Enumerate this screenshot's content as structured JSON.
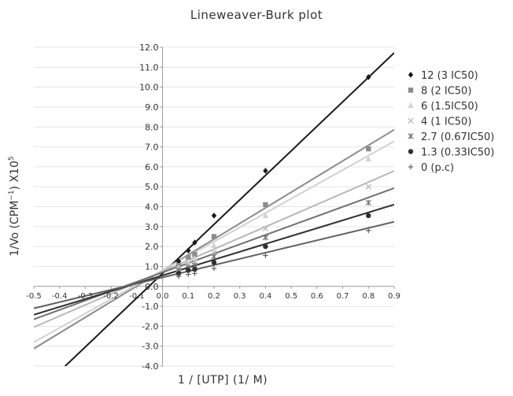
{
  "chart_data": {
    "type": "scatter",
    "title": "Lineweaver-Burk plot",
    "xlabel": "1 / [UTP] (1/ M)",
    "ylabel_parts": {
      "main": "1/Vo (CPM",
      "exp": "−1",
      "tail": ") X10",
      "power": "5"
    },
    "xlim": [
      -0.5,
      0.9
    ],
    "ylim": [
      -4.0,
      12.0
    ],
    "x_ticks": [
      "-0.5",
      "-0.4",
      "-0.3",
      "-0.2",
      "-0.1",
      "0.0",
      "0.1",
      "0.2",
      "0.3",
      "0.4",
      "0.5",
      "0.6",
      "0.7",
      "0.8",
      "0.9"
    ],
    "y_ticks": [
      "-4.0",
      "-3.0",
      "-2.0",
      "-1.0",
      "0.0",
      "1.0",
      "2.0",
      "3.0",
      "4.0",
      "5.0",
      "6.0",
      "7.0",
      "8.0",
      "9.0",
      "10.0",
      "11.0",
      "12.0"
    ],
    "grid": "horizontal",
    "legend_position": "right",
    "x": [
      0.0625,
      0.1,
      0.125,
      0.2,
      0.4,
      0.8
    ],
    "series": [
      {
        "name": "12 (3 IC50)",
        "marker": "diamond",
        "color": "#1a1a1a",
        "values": [
          1.25,
          1.8,
          2.2,
          3.55,
          5.8,
          10.5
        ],
        "fit": {
          "slope": 12.3,
          "intercept": 0.65
        }
      },
      {
        "name": "8 (2 IC50)",
        "marker": "square",
        "color": "#8c8c8c",
        "values": [
          1.05,
          1.45,
          1.6,
          2.5,
          4.1,
          6.9
        ],
        "fit": {
          "slope": 7.85,
          "intercept": 0.8
        }
      },
      {
        "name": "6 (1.5IC50)",
        "marker": "triangle",
        "color": "#d2d2d2",
        "values": [
          0.95,
          1.25,
          1.4,
          2.05,
          3.55,
          6.4
        ],
        "fit": {
          "slope": 7.2,
          "intercept": 0.8
        }
      },
      {
        "name": "4 (1 IC50)",
        "marker": "x",
        "color": "#b8b8b8",
        "values": [
          0.85,
          1.1,
          1.2,
          1.7,
          2.9,
          5.0
        ],
        "fit": {
          "slope": 5.6,
          "intercept": 0.75
        }
      },
      {
        "name": "2.7 (0.67IC50)",
        "marker": "asterisk",
        "color": "#707070",
        "values": [
          0.8,
          0.95,
          1.05,
          1.5,
          2.45,
          4.2
        ],
        "fit": {
          "slope": 4.7,
          "intercept": 0.7
        }
      },
      {
        "name": "1.3 (0.33IC50)",
        "marker": "circle",
        "color": "#303030",
        "values": [
          0.65,
          0.8,
          0.85,
          1.2,
          2.0,
          3.55
        ],
        "fit": {
          "slope": 3.95,
          "intercept": 0.55
        }
      },
      {
        "name": "0 (p.c)",
        "marker": "plus",
        "color": "#606060",
        "values": [
          0.5,
          0.6,
          0.65,
          0.9,
          1.55,
          2.8
        ],
        "fit": {
          "slope": 3.1,
          "intercept": 0.45
        }
      }
    ]
  }
}
